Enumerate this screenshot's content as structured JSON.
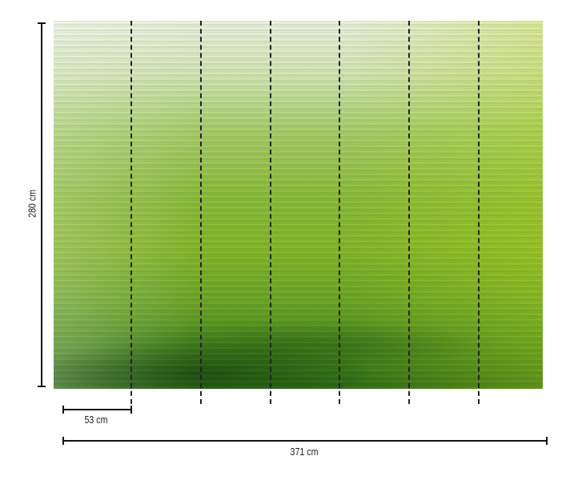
{
  "dimensions": {
    "height_label": "280 cm",
    "panel_width_label": "53 cm",
    "total_width_label": "371 cm"
  },
  "panels": 7,
  "colors": {
    "top": "#eef3e0",
    "middle": "#8cbd3a",
    "bottom": "#2e6a14",
    "accent": "#b5d22a"
  }
}
